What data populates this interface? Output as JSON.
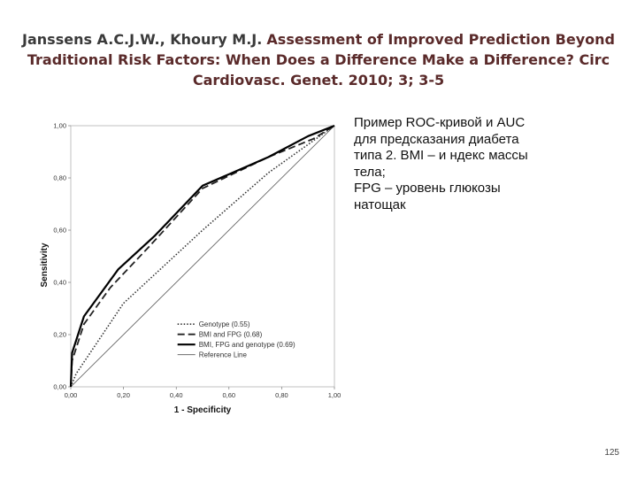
{
  "header": {
    "authors": "Janssens A.C.J.W., Khoury M.J.",
    "citation": "Assessment of Improved Prediction Beyond Traditional Risk Factors: When Does a Difference Make a Difference? Circ Cardiovasc. Genet. 2010; 3; 3-5"
  },
  "caption": {
    "lines": [
      "Пример ROC-кривой и AUC",
      "для предсказания диабета",
      "типа 2. BMI – и ндекс массы",
      "тела;",
      "FPG – уровень глюкозы",
      "натощак"
    ]
  },
  "page_number": "125",
  "chart_data": {
    "type": "line",
    "title": "",
    "xlabel": "1 - Specificity",
    "ylabel": "Sensitivity",
    "xlim": [
      0,
      1
    ],
    "ylim": [
      0,
      1
    ],
    "x_ticks": [
      "0,00",
      "0,20",
      "0,40",
      "0,60",
      "0,80",
      "1,00"
    ],
    "y_ticks": [
      "0,00",
      "0,20",
      "0,40",
      "0,60",
      "0,80",
      "1,00"
    ],
    "legend_position": "bottom-right",
    "series": [
      {
        "name": "Genotype (0.55)",
        "style": "dotted",
        "color": "#333333",
        "x": [
          0,
          0.02,
          0.2,
          0.5,
          0.75,
          1.0
        ],
        "y": [
          0,
          0.05,
          0.32,
          0.6,
          0.82,
          1.0
        ]
      },
      {
        "name": "BMI and FPG (0.68)",
        "style": "dashed",
        "color": "#222222",
        "x": [
          0,
          0.005,
          0.05,
          0.15,
          0.3,
          0.5,
          0.75,
          0.92,
          1.0
        ],
        "y": [
          0,
          0.1,
          0.24,
          0.38,
          0.54,
          0.76,
          0.88,
          0.95,
          1.0
        ]
      },
      {
        "name": "BMI, FPG and genotype (0.69)",
        "style": "solid",
        "color": "#000000",
        "x": [
          0,
          0.005,
          0.05,
          0.18,
          0.32,
          0.5,
          0.75,
          0.9,
          1.0
        ],
        "y": [
          0,
          0.13,
          0.27,
          0.45,
          0.58,
          0.77,
          0.88,
          0.96,
          1.0
        ]
      },
      {
        "name": "Reference Line",
        "style": "thin",
        "color": "#555555",
        "x": [
          0,
          1
        ],
        "y": [
          0,
          1
        ]
      }
    ]
  }
}
